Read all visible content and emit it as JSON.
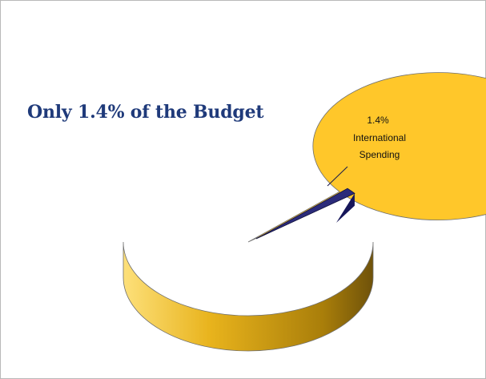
{
  "colors": {
    "title": "#1f3a7a",
    "main_slice": "#ffc72a",
    "main_slice_side": "#d6a414",
    "highlight_slice": "#2b2b7a",
    "highlight_slice_side": "#16165a",
    "outline": "#6f6f6f"
  },
  "slide": {
    "title": "Only 1.4% of the Budget"
  },
  "chart_data": {
    "type": "pie",
    "style": "3d",
    "title": "",
    "slices": [
      {
        "label": "",
        "value": 98.6,
        "color": "#ffc72a"
      },
      {
        "label": "International Spending",
        "value": 1.4,
        "value_label": "1.4%",
        "color": "#2b2b7a"
      }
    ],
    "annotation": {
      "value_text": "1.4%",
      "label_line1": "International",
      "label_line2": "Spending"
    }
  }
}
